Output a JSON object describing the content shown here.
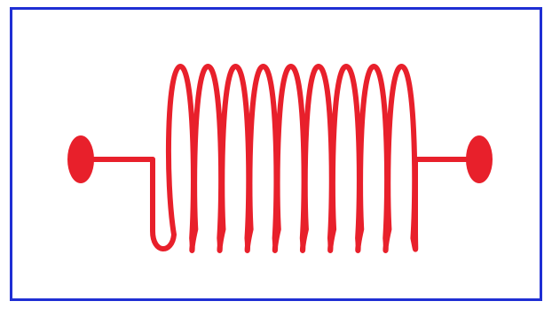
{
  "diagram": {
    "symbol": "inductor-coil",
    "turns": 9,
    "colors": {
      "coil": "#e8202b",
      "border": "#1f2fd4",
      "background": "#ffffff"
    }
  }
}
